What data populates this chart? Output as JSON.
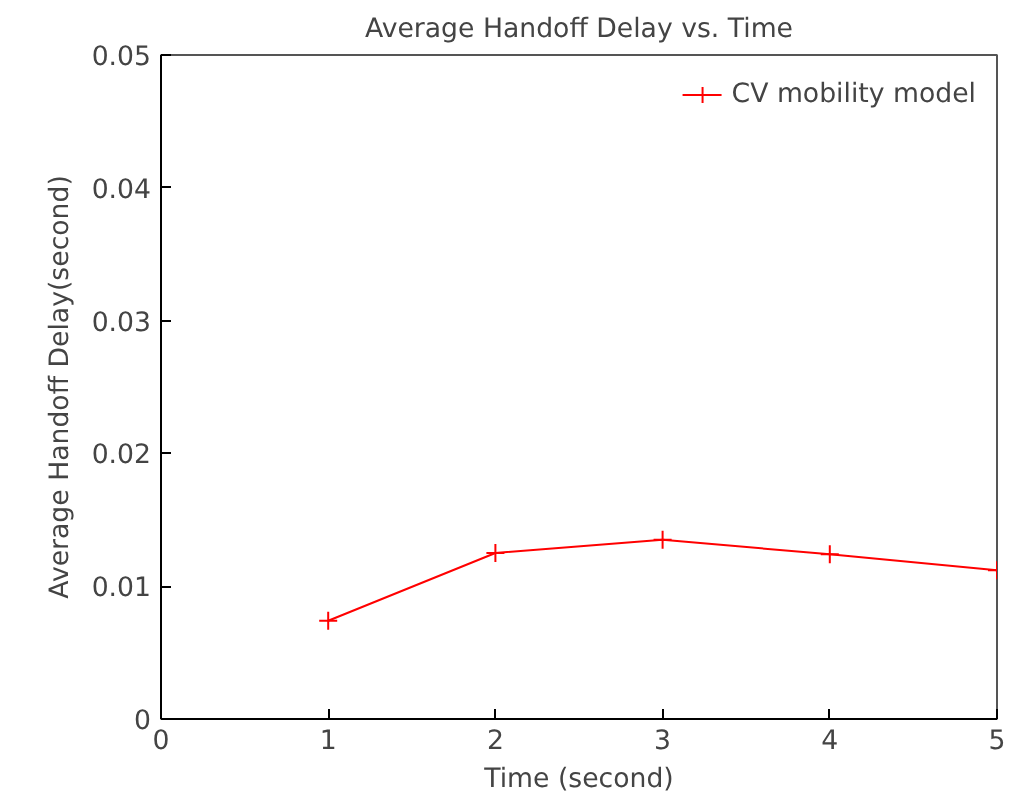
{
  "chart_data": {
    "type": "line",
    "title": "Average Handoff Delay vs. Time",
    "xlabel": "Time (second)",
    "ylabel": "Average Handoff Delay(second)",
    "x": [
      1,
      2,
      3,
      4,
      5
    ],
    "series": [
      {
        "name": "CV mobility model",
        "color": "#ff0000",
        "values": [
          0.0074,
          0.0125,
          0.0135,
          0.0124,
          0.0112
        ]
      }
    ],
    "xlim": [
      0,
      5
    ],
    "xticks": [
      0,
      1,
      2,
      3,
      4,
      5
    ],
    "ylim": [
      0,
      0.05
    ],
    "yticks": [
      0,
      0.01,
      0.02,
      0.03,
      0.04,
      0.05
    ],
    "grid": false,
    "legend": "top right",
    "marker": "cross",
    "line_style": "solid"
  }
}
